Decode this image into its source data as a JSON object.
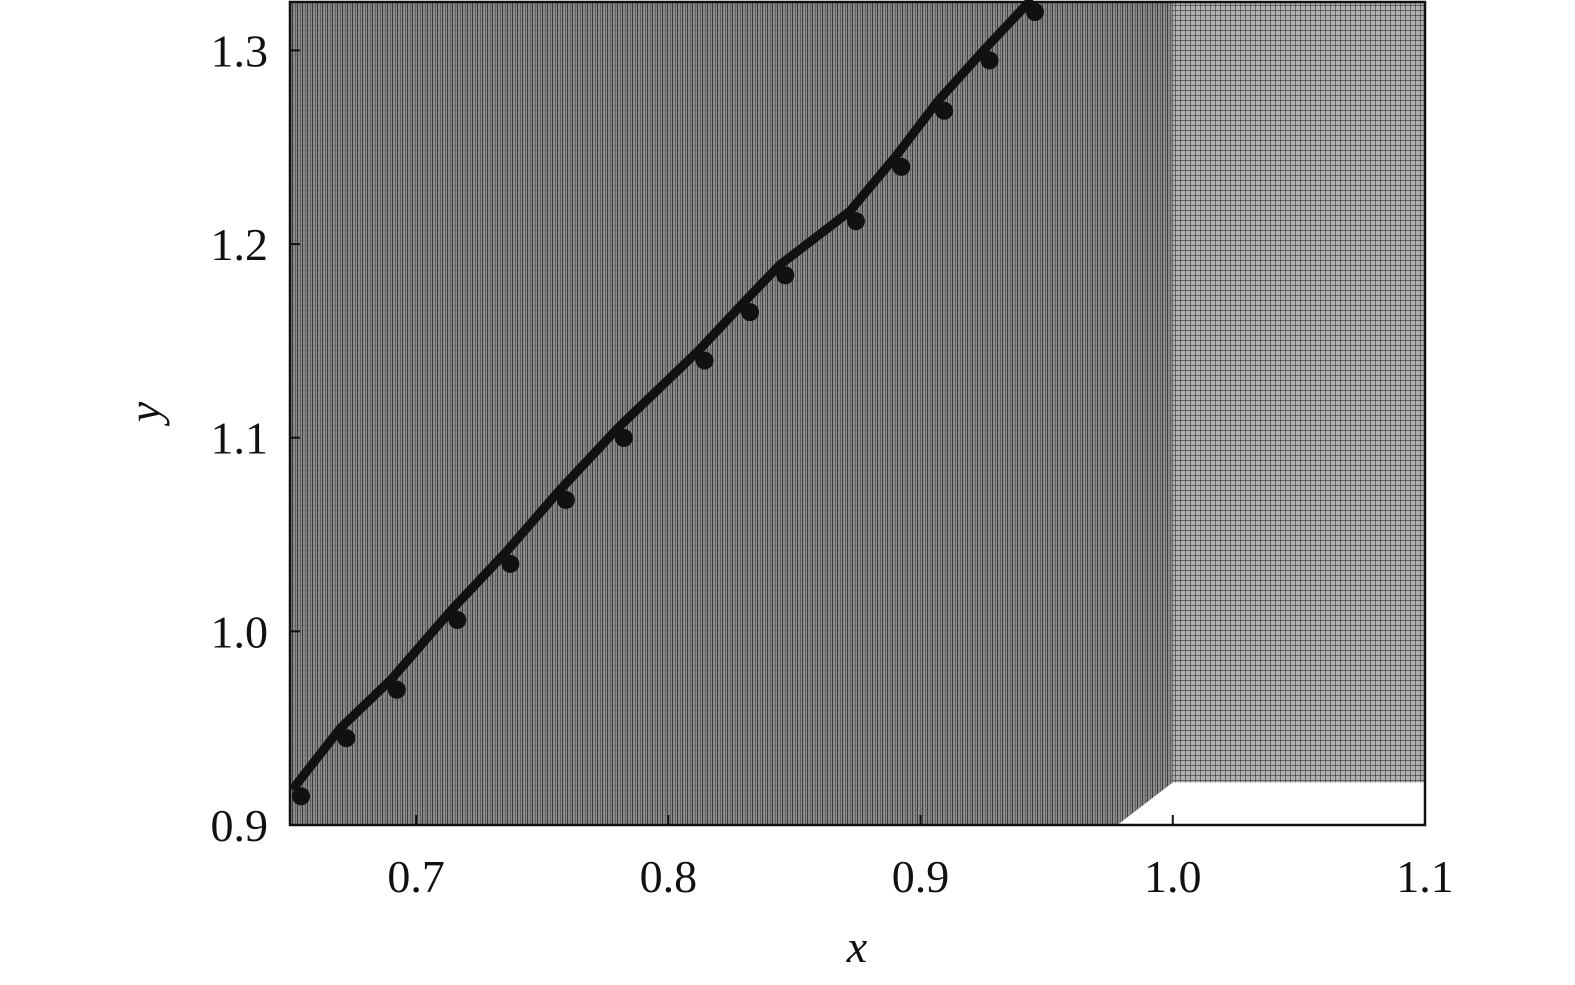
{
  "chart_data": {
    "type": "line",
    "title": "",
    "xlabel": "x",
    "ylabel": "y",
    "xlim": [
      0.65,
      1.1
    ],
    "ylim": [
      0.9,
      1.325
    ],
    "xticks": [
      "0.7",
      "0.8",
      "0.9",
      "1.0",
      "1.1"
    ],
    "yticks": [
      "0.9",
      "1.0",
      "1.1",
      "1.2",
      "1.3"
    ],
    "grid": false,
    "background": "computational mesh",
    "mesh_regions": [
      {
        "name": "fine",
        "polygon": [
          [
            0.65,
            0.9
          ],
          [
            0.978,
            0.9
          ],
          [
            1.0,
            0.922
          ],
          [
            1.0,
            1.325
          ],
          [
            0.65,
            1.325
          ]
        ],
        "color": "#6a6a6a"
      },
      {
        "name": "coarse",
        "polygon": [
          [
            1.0,
            0.922
          ],
          [
            1.1,
            0.922
          ],
          [
            1.1,
            1.325
          ],
          [
            1.0,
            1.325
          ]
        ],
        "color": "#8a8a8a"
      }
    ],
    "series": [
      {
        "color": "#111111",
        "x": [
          0.652,
          0.67,
          0.69,
          0.714,
          0.735,
          0.757,
          0.78,
          0.812,
          0.83,
          0.844,
          0.872,
          0.89,
          0.907,
          0.925,
          0.943
        ],
        "y": [
          0.92,
          0.95,
          0.975,
          1.011,
          1.04,
          1.073,
          1.105,
          1.145,
          1.17,
          1.189,
          1.217,
          1.245,
          1.274,
          1.3,
          1.325
        ]
      }
    ]
  }
}
